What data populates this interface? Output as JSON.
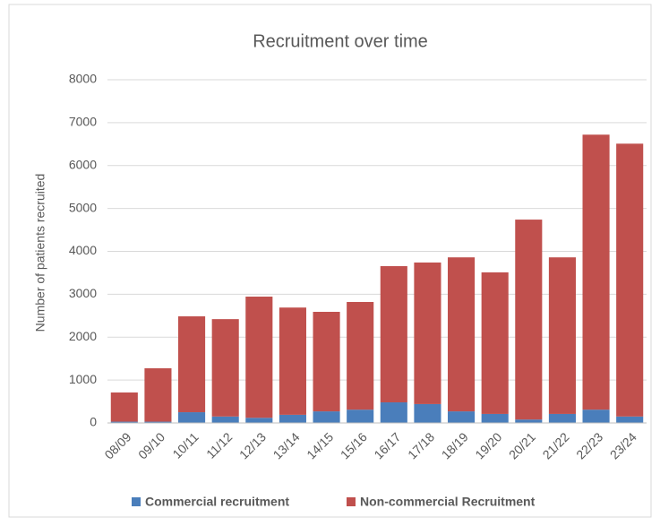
{
  "chart_data": {
    "type": "stacked_bar",
    "title": "Recruitment over time",
    "y_label": "Number of patients recruited",
    "categories": [
      "08/09",
      "09/10",
      "10/11",
      "11/12",
      "12/13",
      "13/14",
      "14/15",
      "15/16",
      "16/17",
      "17/18",
      "18/19",
      "19/20",
      "20/21",
      "21/22",
      "22/23",
      "23/24"
    ],
    "series": [
      {
        "name": "Commercial recruitment",
        "color": "#4a7ebb",
        "values": [
          30,
          30,
          250,
          150,
          120,
          190,
          270,
          310,
          480,
          440,
          270,
          210,
          80,
          210,
          310,
          150
        ]
      },
      {
        "name": "Non-commercial Recruitment",
        "color": "#c0504d",
        "values": [
          680,
          1245,
          2235,
          2270,
          2825,
          2500,
          2320,
          2510,
          3175,
          3300,
          3590,
          3300,
          4660,
          3650,
          6410,
          6360
        ]
      }
    ],
    "ylim": [
      0,
      8000
    ],
    "yticks": [
      0,
      1000,
      2000,
      3000,
      4000,
      5000,
      6000,
      7000,
      8000
    ],
    "grid": true,
    "legend": "bottom"
  }
}
